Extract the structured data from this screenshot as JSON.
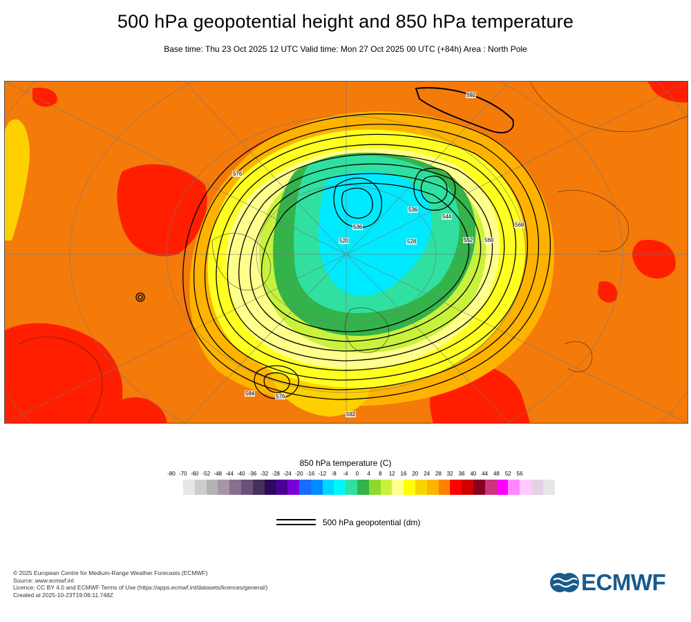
{
  "header": {
    "title": "500 hPa geopotential height and 850 hPa temperature",
    "subtitle": "Base time: Thu 23 Oct 2025 12 UTC Valid time: Mon 27 Oct 2025 00 UTC (+84h) Area : North Pole"
  },
  "map": {
    "contour_labels": [
      "520",
      "528",
      "536",
      "536",
      "544",
      "552",
      "560",
      "568",
      "576",
      "576",
      "584",
      "592",
      "592"
    ]
  },
  "legend": {
    "temperature_title": "850 hPa temperature (C)",
    "ticks": [
      "-80",
      "-70",
      "-60",
      "-52",
      "-48",
      "-44",
      "-40",
      "-36",
      "-32",
      "-28",
      "-24",
      "-20",
      "-16",
      "-12",
      "-8",
      "-4",
      "0",
      "4",
      "8",
      "12",
      "16",
      "20",
      "24",
      "28",
      "32",
      "36",
      "40",
      "44",
      "48",
      "52",
      "56"
    ],
    "colors": [
      "#e6e6e6",
      "#cdcdcd",
      "#b4b4b4",
      "#a695a8",
      "#87708f",
      "#6b4f76",
      "#45305a",
      "#2b0a5d",
      "#4b0095",
      "#7a00d9",
      "#1a6aff",
      "#008bff",
      "#00d6ff",
      "#00f5ff",
      "#2fe0a0",
      "#33b34a",
      "#8fd82e",
      "#c8f23c",
      "#ffff8c",
      "#ffff00",
      "#f7d600",
      "#ffb300",
      "#ff7f00",
      "#ff0000",
      "#d00000",
      "#880022",
      "#cc3380",
      "#ff00ff",
      "#ff88ff",
      "#ffcaff",
      "#e6d0e6",
      "#e6e6e6"
    ],
    "geopotential_label": "500 hPa geopotential (dm)"
  },
  "footer": {
    "lines": [
      "© 2025 European Centre for Medium-Range Weather Forecasts (ECMWF)",
      "Source: www.ecmwf.int",
      "Licence: CC BY 4.0 and ECMWF Terms of Use (https://apps.ecmwf.int/datasets/licences/general/)",
      "Created at 2025-10-23T19:06:11.748Z"
    ]
  },
  "logo": {
    "text": "ECMWF",
    "color": "#1a5a8c"
  }
}
